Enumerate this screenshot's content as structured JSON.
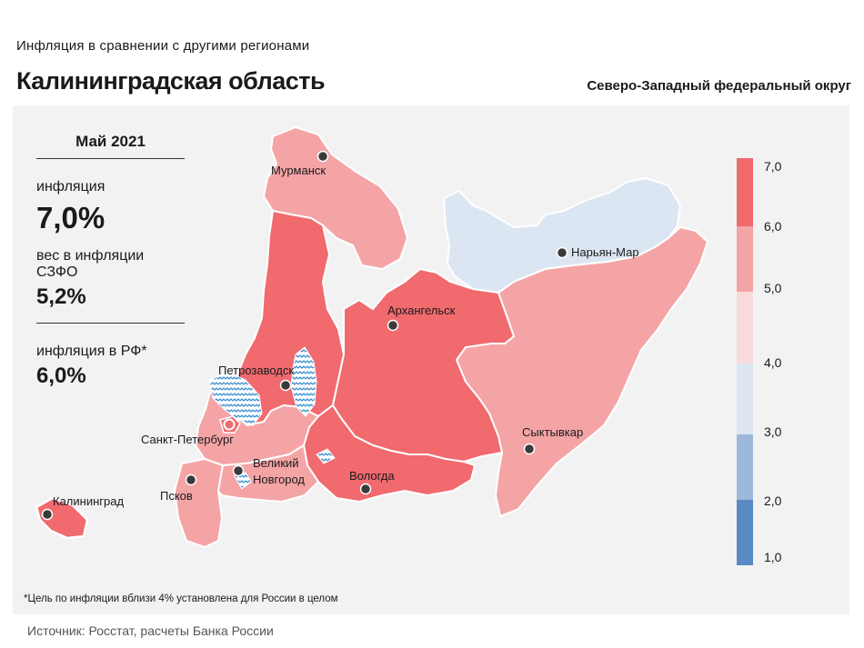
{
  "header": {
    "subtitle": "Инфляция  в сравнении  с другими  регионами",
    "title": "Калининградская область",
    "district": "Северо-Западный федеральный округ"
  },
  "info": {
    "month": "Май 2021",
    "inflation_label": "инфляция",
    "inflation_value": "7,0%",
    "weight_label": "вес в инфляции  СЗФО",
    "weight_value": "5,2%",
    "rf_label": "инфляция  в РФ*",
    "rf_value": "6,0%"
  },
  "cities": [
    {
      "name": "Мурманск",
      "label": "Мурманск"
    },
    {
      "name": "Нарьян-Мар",
      "label": "Нарьян-Мар"
    },
    {
      "name": "Архангельск",
      "label": "Архангельск"
    },
    {
      "name": "Петрозаводск",
      "label": "Петрозаводск"
    },
    {
      "name": "Санкт-Петербург",
      "label": "Санкт-Петербург"
    },
    {
      "name": "Сыктывкар",
      "label": "Сыктывкар"
    },
    {
      "name": "Великий Новгород",
      "label": "Великий",
      "label2": "Новгород"
    },
    {
      "name": "Вологда",
      "label": "Вологда"
    },
    {
      "name": "Псков",
      "label": "Псков"
    },
    {
      "name": "Калининград",
      "label": "Калининград"
    }
  ],
  "legend": {
    "ticks": [
      "7,0",
      "6,0",
      "5,0",
      "4,0",
      "3,0",
      "2,0",
      "1,0"
    ],
    "bins": [
      {
        "from": 6.0,
        "to": 7.0,
        "color": "#f06a6e"
      },
      {
        "from": 5.0,
        "to": 6.0,
        "color": "#f5a4a6"
      },
      {
        "from": 4.0,
        "to": 5.0,
        "color": "#f9dadb"
      },
      {
        "from": 3.0,
        "to": 4.0,
        "color": "#dce6f3"
      },
      {
        "from": 2.0,
        "to": 3.0,
        "color": "#9db8dc"
      },
      {
        "from": 1.0,
        "to": 2.0,
        "color": "#5a8ac6"
      }
    ]
  },
  "region_classes": {
    "Мурманская область": "5,0–6,0",
    "Ненецкий АО": "3,0–4,0",
    "Республика Карелия": "6,0–7,0",
    "Архангельская область": "6,0–7,0",
    "Республика Коми": "5,0–6,0",
    "Ленинградская область": "5,0–6,0",
    "Санкт-Петербург": "6,0–7,0",
    "Новгородская область": "5,0–6,0",
    "Псковская область": "5,0–6,0",
    "Вологодская область": "6,0–7,0",
    "Калининградская область": "6,0–7,0"
  },
  "colors": {
    "high": "#f06a6e",
    "mid": "#f5a4a6",
    "light_blue": "#dce6f3",
    "water": "#7fb6df",
    "panel": "#f2f2f2"
  },
  "footnote": "*Цель по инфляции вблизи 4% установлена для России в целом",
  "source": "Источник: Росстат, расчеты Банка России"
}
